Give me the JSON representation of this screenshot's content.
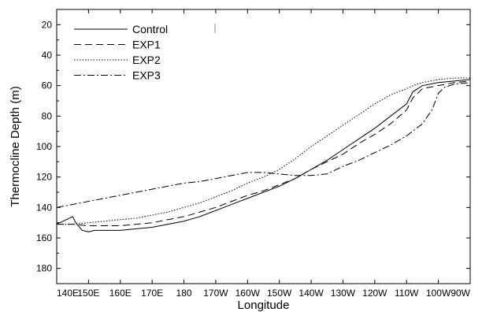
{
  "chart_data": {
    "type": "line",
    "title": "",
    "xlabel": "Longitude",
    "ylabel": "Thermocline Depth (m)",
    "x_ticks": [
      "140E",
      "150E",
      "160E",
      "170E",
      "180",
      "170W",
      "160W",
      "150W",
      "140W",
      "130W",
      "120W",
      "110W",
      "100W",
      "90W"
    ],
    "x_units": "degrees east",
    "xlim": [
      140,
      270
    ],
    "ylim": [
      190,
      10
    ],
    "y_inverted": true,
    "y_ticks": [
      20,
      40,
      60,
      80,
      100,
      120,
      140,
      160,
      180
    ],
    "grid": false,
    "legend_position": "top-left",
    "series": [
      {
        "name": "Control",
        "style": "solid",
        "x": [
          140,
          143,
          145,
          146,
          148,
          150,
          152,
          155,
          160,
          165,
          170,
          175,
          180,
          185,
          190,
          195,
          200,
          205,
          210,
          215,
          220,
          225,
          230,
          235,
          240,
          245,
          250,
          252,
          255,
          260,
          265,
          270
        ],
        "y": [
          151,
          148,
          146,
          150,
          155,
          156,
          155,
          155,
          155,
          154,
          153,
          151,
          149,
          146,
          142,
          138,
          134,
          130,
          126,
          121,
          115,
          109,
          102,
          95,
          88,
          80,
          72,
          64,
          60,
          58,
          57,
          56
        ]
      },
      {
        "name": "EXP1",
        "style": "dashed",
        "x": [
          140,
          145,
          150,
          155,
          160,
          165,
          170,
          175,
          180,
          185,
          190,
          195,
          200,
          205,
          210,
          215,
          220,
          225,
          230,
          235,
          240,
          245,
          250,
          252,
          255,
          260,
          265,
          270
        ],
        "y": [
          151,
          151,
          152,
          152,
          152,
          151,
          150,
          148,
          146,
          143,
          140,
          136,
          132,
          129,
          125,
          121,
          115,
          110,
          105,
          98,
          92,
          85,
          76,
          68,
          62,
          60,
          58,
          57
        ]
      },
      {
        "name": "EXP2",
        "style": "dotted",
        "x": [
          140,
          145,
          150,
          155,
          160,
          165,
          170,
          175,
          180,
          185,
          190,
          195,
          200,
          205,
          210,
          215,
          220,
          225,
          230,
          235,
          240,
          245,
          250,
          252,
          255,
          260,
          265,
          270
        ],
        "y": [
          151,
          151,
          150,
          149,
          148,
          147,
          145,
          143,
          140,
          137,
          133,
          129,
          124,
          120,
          115,
          108,
          100,
          93,
          86,
          79,
          72,
          66,
          62,
          60,
          58,
          56,
          55,
          55
        ]
      },
      {
        "name": "EXP3",
        "style": "dash-dot",
        "x": [
          140,
          145,
          150,
          155,
          160,
          165,
          170,
          175,
          180,
          185,
          190,
          195,
          200,
          205,
          210,
          215,
          220,
          225,
          230,
          235,
          240,
          245,
          250,
          255,
          258,
          260,
          262,
          265,
          270
        ],
        "y": [
          140,
          138,
          136,
          134,
          132,
          130,
          128,
          126,
          124,
          123,
          121,
          119,
          117,
          117,
          118,
          119,
          119,
          118,
          113,
          109,
          104,
          99,
          93,
          85,
          76,
          65,
          61,
          59,
          58
        ]
      }
    ]
  }
}
